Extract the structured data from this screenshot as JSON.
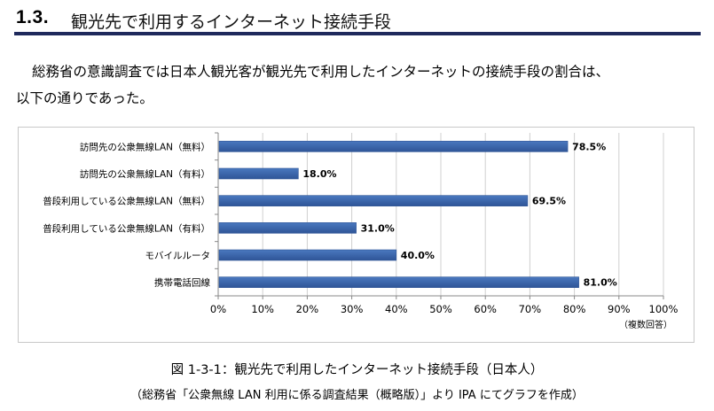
{
  "section": {
    "number": "1.3.",
    "title": "観光先で利用するインターネット接続手段"
  },
  "intro": {
    "line1": "総務省の意識調査では日本人観光客が観光先で利用したインターネットの接続手段の割合は、",
    "line2": "以下の通りであった。"
  },
  "chart_data": {
    "type": "bar",
    "orientation": "horizontal",
    "categories": [
      "訪問先の公衆無線LAN（無料）",
      "訪問先の公衆無線LAN（有料）",
      "普段利用している公衆無線LAN（無料）",
      "普段利用している公衆無線LAN（有料）",
      "モバイルルータ",
      "携帯電話回線"
    ],
    "values": [
      78.5,
      18.0,
      69.5,
      31.0,
      40.0,
      81.0
    ],
    "value_labels": [
      "78.5%",
      "18.0%",
      "69.5%",
      "31.0%",
      "40.0%",
      "81.0%"
    ],
    "xlim": [
      0,
      100
    ],
    "xticks": [
      "0%",
      "10%",
      "20%",
      "30%",
      "40%",
      "50%",
      "60%",
      "70%",
      "80%",
      "90%",
      "100%"
    ],
    "grid": "vertical",
    "legend": "none",
    "note": "（複数回答）",
    "bar_color": "#4a78bf",
    "bar_color_dark": "#2f5597"
  },
  "caption": "図 1-3-1：観光先で利用したインターネット接続手段（日本人）",
  "source": "（総務省「公衆無線 LAN 利用に係る調査結果（概略版）」より IPA にてグラフを作成）"
}
